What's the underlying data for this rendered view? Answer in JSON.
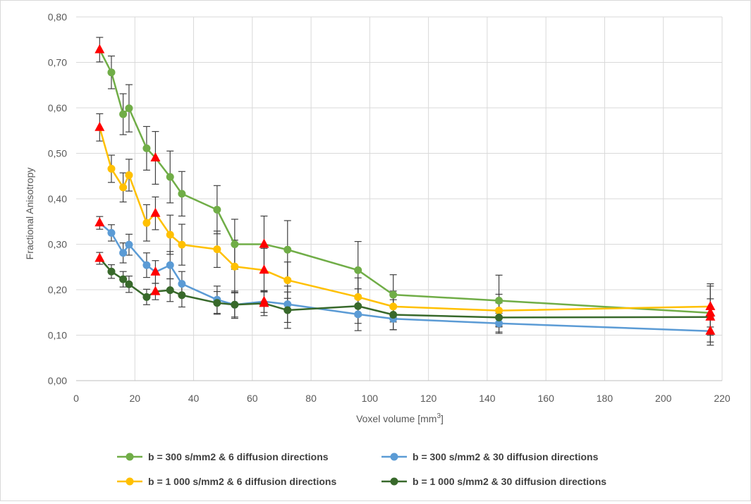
{
  "chart_data": {
    "type": "line",
    "title": "",
    "xlabel": "Voxel volume [mm",
    "xlabel_sup": "3",
    "xlabel_end": "]",
    "ylabel": "Fractional Anisotropy",
    "xlim": [
      0,
      220
    ],
    "ylim": [
      0,
      0.8
    ],
    "xticks": [
      0,
      20,
      40,
      60,
      80,
      100,
      120,
      140,
      160,
      180,
      200,
      220
    ],
    "xtick_labels": [
      "0",
      "20",
      "40",
      "60",
      "80",
      "100",
      "120",
      "140",
      "160",
      "180",
      "200",
      "220"
    ],
    "yticks": [
      0,
      0.1,
      0.2,
      0.3,
      0.4,
      0.5,
      0.6,
      0.7,
      0.8
    ],
    "ytick_labels": [
      "0,00",
      "0,10",
      "0,20",
      "0,30",
      "0,40",
      "0,50",
      "0,60",
      "0,70",
      "0,80"
    ],
    "grid": true,
    "legend_position": "bottom",
    "error_bar_color": "#404040",
    "marker_colors": {
      "circle": "series",
      "triangle": "#ff0000"
    },
    "series": [
      {
        "name": "b = 300 s/mm2 & 6 diffusion directions",
        "color": "#70ad47",
        "points": [
          {
            "x": 8,
            "y": 0.728,
            "err": 0.027,
            "marker": "triangle"
          },
          {
            "x": 12,
            "y": 0.678,
            "err": 0.036,
            "marker": "circle"
          },
          {
            "x": 16,
            "y": 0.586,
            "err": 0.045,
            "marker": "circle"
          },
          {
            "x": 18,
            "y": 0.599,
            "err": 0.052,
            "marker": "circle"
          },
          {
            "x": 24,
            "y": 0.511,
            "err": 0.048,
            "marker": "circle"
          },
          {
            "x": 27,
            "y": 0.49,
            "err": 0.058,
            "marker": "triangle"
          },
          {
            "x": 32,
            "y": 0.448,
            "err": 0.057,
            "marker": "circle"
          },
          {
            "x": 36,
            "y": 0.411,
            "err": 0.049,
            "marker": "circle"
          },
          {
            "x": 48,
            "y": 0.376,
            "err": 0.053,
            "marker": "circle"
          },
          {
            "x": 54,
            "y": 0.3,
            "err": 0.055,
            "marker": "circle"
          },
          {
            "x": 64,
            "y": 0.3,
            "err": 0.062,
            "marker": "triangle"
          },
          {
            "x": 72,
            "y": 0.288,
            "err": 0.064,
            "marker": "circle"
          },
          {
            "x": 96,
            "y": 0.243,
            "err": 0.063,
            "marker": "circle"
          },
          {
            "x": 108,
            "y": 0.189,
            "err": 0.044,
            "marker": "circle"
          },
          {
            "x": 144,
            "y": 0.176,
            "err": 0.056,
            "marker": "circle"
          },
          {
            "x": 216,
            "y": 0.149,
            "err": 0.064,
            "marker": "triangle"
          }
        ]
      },
      {
        "name": "b = 300 s/mm2 & 30 diffusion directions",
        "color": "#5b9bd5",
        "points": [
          {
            "x": 8,
            "y": 0.347,
            "err": 0.014,
            "marker": "triangle"
          },
          {
            "x": 12,
            "y": 0.325,
            "err": 0.018,
            "marker": "circle"
          },
          {
            "x": 16,
            "y": 0.281,
            "err": 0.022,
            "marker": "circle"
          },
          {
            "x": 18,
            "y": 0.299,
            "err": 0.023,
            "marker": "circle"
          },
          {
            "x": 24,
            "y": 0.254,
            "err": 0.027,
            "marker": "circle"
          },
          {
            "x": 27,
            "y": 0.239,
            "err": 0.025,
            "marker": "triangle"
          },
          {
            "x": 32,
            "y": 0.254,
            "err": 0.03,
            "marker": "circle"
          },
          {
            "x": 36,
            "y": 0.213,
            "err": 0.027,
            "marker": "circle"
          },
          {
            "x": 48,
            "y": 0.178,
            "err": 0.03,
            "marker": "circle"
          },
          {
            "x": 54,
            "y": 0.167,
            "err": 0.027,
            "marker": "circle"
          },
          {
            "x": 64,
            "y": 0.174,
            "err": 0.024,
            "marker": "triangle"
          },
          {
            "x": 72,
            "y": 0.168,
            "err": 0.04,
            "marker": "circle"
          },
          {
            "x": 96,
            "y": 0.146,
            "err": 0.036,
            "marker": "circle"
          },
          {
            "x": 108,
            "y": 0.136,
            "err": 0.024,
            "marker": "circle"
          },
          {
            "x": 144,
            "y": 0.126,
            "err": 0.022,
            "marker": "circle"
          },
          {
            "x": 216,
            "y": 0.109,
            "err": 0.031,
            "marker": "triangle"
          }
        ]
      },
      {
        "name": "b = 1 000 s/mm2 & 6 diffusion directions",
        "color": "#ffc000",
        "points": [
          {
            "x": 8,
            "y": 0.557,
            "err": 0.03,
            "marker": "triangle"
          },
          {
            "x": 12,
            "y": 0.466,
            "err": 0.03,
            "marker": "circle"
          },
          {
            "x": 16,
            "y": 0.425,
            "err": 0.032,
            "marker": "circle"
          },
          {
            "x": 18,
            "y": 0.452,
            "err": 0.035,
            "marker": "circle"
          },
          {
            "x": 24,
            "y": 0.347,
            "err": 0.04,
            "marker": "circle"
          },
          {
            "x": 27,
            "y": 0.368,
            "err": 0.036,
            "marker": "triangle"
          },
          {
            "x": 32,
            "y": 0.321,
            "err": 0.043,
            "marker": "circle"
          },
          {
            "x": 36,
            "y": 0.299,
            "err": 0.045,
            "marker": "circle"
          },
          {
            "x": 48,
            "y": 0.289,
            "err": 0.04,
            "marker": "circle"
          },
          {
            "x": 54,
            "y": 0.251,
            "err": 0.058,
            "marker": "circle"
          },
          {
            "x": 64,
            "y": 0.243,
            "err": 0.048,
            "marker": "triangle"
          },
          {
            "x": 72,
            "y": 0.221,
            "err": 0.04,
            "marker": "circle"
          },
          {
            "x": 96,
            "y": 0.184,
            "err": 0.042,
            "marker": "circle"
          },
          {
            "x": 108,
            "y": 0.163,
            "err": 0.034,
            "marker": "circle"
          },
          {
            "x": 144,
            "y": 0.154,
            "err": 0.036,
            "marker": "circle"
          },
          {
            "x": 216,
            "y": 0.163,
            "err": 0.045,
            "marker": "triangle"
          }
        ]
      },
      {
        "name": "b = 1 000 s/mm2 & 30 diffusion directions",
        "color": "#38692b",
        "points": [
          {
            "x": 8,
            "y": 0.269,
            "err": 0.013,
            "marker": "triangle"
          },
          {
            "x": 12,
            "y": 0.24,
            "err": 0.015,
            "marker": "circle"
          },
          {
            "x": 16,
            "y": 0.223,
            "err": 0.017,
            "marker": "circle"
          },
          {
            "x": 18,
            "y": 0.212,
            "err": 0.018,
            "marker": "circle"
          },
          {
            "x": 24,
            "y": 0.184,
            "err": 0.017,
            "marker": "circle"
          },
          {
            "x": 27,
            "y": 0.196,
            "err": 0.018,
            "marker": "triangle"
          },
          {
            "x": 32,
            "y": 0.199,
            "err": 0.025,
            "marker": "circle"
          },
          {
            "x": 36,
            "y": 0.188,
            "err": 0.026,
            "marker": "circle"
          },
          {
            "x": 48,
            "y": 0.171,
            "err": 0.025,
            "marker": "circle"
          },
          {
            "x": 54,
            "y": 0.167,
            "err": 0.03,
            "marker": "circle"
          },
          {
            "x": 64,
            "y": 0.17,
            "err": 0.027,
            "marker": "triangle"
          },
          {
            "x": 72,
            "y": 0.155,
            "err": 0.04,
            "marker": "circle"
          },
          {
            "x": 96,
            "y": 0.164,
            "err": 0.038,
            "marker": "circle"
          },
          {
            "x": 108,
            "y": 0.145,
            "err": 0.033,
            "marker": "circle"
          },
          {
            "x": 144,
            "y": 0.139,
            "err": 0.032,
            "marker": "circle"
          },
          {
            "x": 216,
            "y": 0.14,
            "err": 0.04,
            "marker": "triangle"
          }
        ]
      }
    ]
  }
}
